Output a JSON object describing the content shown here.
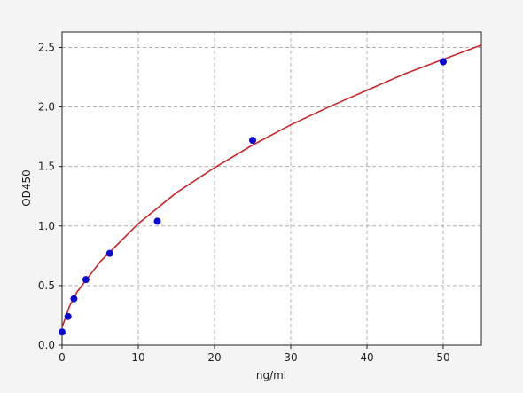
{
  "chart_data": {
    "type": "scatter",
    "xlabel": "ng/ml",
    "ylabel": "OD450",
    "xlim": [
      0,
      55
    ],
    "ylim": [
      0,
      2.63
    ],
    "xticks": [
      0,
      10,
      20,
      30,
      40,
      50
    ],
    "yticks": [
      {
        "value": 0,
        "label": "0.0"
      },
      {
        "value": 0.5,
        "label": "0.5"
      },
      {
        "value": 1,
        "label": "1.0"
      },
      {
        "value": 1.5,
        "label": "1.5"
      },
      {
        "value": 2,
        "label": "2.0"
      },
      {
        "value": 2.5,
        "label": "2.5"
      }
    ],
    "grid": true,
    "series": [
      {
        "mode": "line",
        "color": "#c8282a",
        "x": [
          0,
          1,
          2,
          5,
          10,
          15,
          20,
          25,
          30,
          35,
          40,
          45,
          50,
          55
        ],
        "values": [
          0.15,
          0.33,
          0.45,
          0.7,
          1.02,
          1.28,
          1.49,
          1.68,
          1.85,
          2.0,
          2.14,
          2.28,
          2.4,
          2.52
        ]
      },
      {
        "mode": "markers",
        "color": "#0a0ad0",
        "x": [
          0,
          0.78,
          1.56,
          3.125,
          6.25,
          12.5,
          25,
          50
        ],
        "values": [
          0.11,
          0.24,
          0.39,
          0.55,
          0.77,
          1.04,
          1.72,
          2.38
        ]
      }
    ]
  }
}
